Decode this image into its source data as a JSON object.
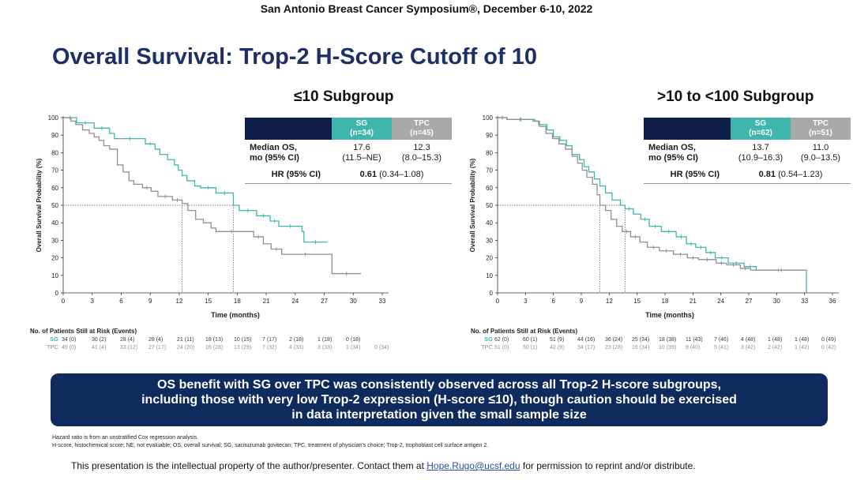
{
  "header": {
    "conference": "San Antonio Breast Cancer Symposium®, December 6-10, 2022",
    "title": "Overall Survival: Trop-2 H-Score Cutoff of 10"
  },
  "colors": {
    "sg": "#3eb6ad",
    "tpc": "#8f8f8f",
    "navy": "#0f1f4a",
    "title": "#1c2f66"
  },
  "chart_data": [
    {
      "type": "line",
      "title": "≤10 Subgroup",
      "xlabel": "Time (months)",
      "ylabel": "Overall Survival Probability (%)",
      "xlim": [
        0,
        33
      ],
      "ylim": [
        0,
        100
      ],
      "xticks": [
        "0",
        "3",
        "6",
        "9",
        "12",
        "15",
        "18",
        "21",
        "24",
        "27",
        "30",
        "33"
      ],
      "yticks": [
        "0",
        "10",
        "20",
        "30",
        "40",
        "50",
        "60",
        "70",
        "80",
        "90",
        "100"
      ],
      "median_reference": {
        "y": 50,
        "sg_x": 17.6,
        "tpc_x": 12.3
      },
      "series": [
        {
          "name": "SG",
          "key": "sg",
          "points": [
            [
              0,
              100
            ],
            [
              1.4,
              97
            ],
            [
              3.2,
              94
            ],
            [
              4.8,
              91
            ],
            [
              5.3,
              88
            ],
            [
              8.5,
              85
            ],
            [
              9.5,
              82
            ],
            [
              10,
              79
            ],
            [
              10.8,
              76
            ],
            [
              11.5,
              73
            ],
            [
              11.9,
              70
            ],
            [
              12.3,
              67
            ],
            [
              12.8,
              64
            ],
            [
              13.6,
              61
            ],
            [
              14.2,
              60
            ],
            [
              15.8,
              57
            ],
            [
              17.6,
              50
            ],
            [
              18.2,
              47
            ],
            [
              20,
              44
            ],
            [
              21.4,
              41
            ],
            [
              22.3,
              38
            ],
            [
              24.7,
              35
            ],
            [
              24.9,
              29
            ],
            [
              27.3,
              29
            ]
          ]
        },
        {
          "name": "TPC",
          "key": "tpc",
          "points": [
            [
              0,
              100
            ],
            [
              0.8,
              98
            ],
            [
              1.3,
              96
            ],
            [
              2,
              93
            ],
            [
              2.7,
              91
            ],
            [
              3.2,
              89
            ],
            [
              3.7,
              87
            ],
            [
              4.2,
              84
            ],
            [
              4.8,
              82
            ],
            [
              5.6,
              73
            ],
            [
              6.2,
              69
            ],
            [
              6.8,
              64
            ],
            [
              7.3,
              62
            ],
            [
              8.2,
              60
            ],
            [
              9.1,
              58
            ],
            [
              9.8,
              55
            ],
            [
              11.3,
              53
            ],
            [
              12.3,
              51
            ],
            [
              12.9,
              47
            ],
            [
              13.7,
              42
            ],
            [
              14.5,
              40
            ],
            [
              15.3,
              37
            ],
            [
              15.8,
              35
            ],
            [
              19,
              35
            ],
            [
              19.7,
              32
            ],
            [
              20.7,
              28
            ],
            [
              21.5,
              25
            ],
            [
              22.6,
              22
            ],
            [
              27.5,
              22
            ],
            [
              27.8,
              11
            ],
            [
              30.8,
              11
            ]
          ]
        }
      ]
    },
    {
      "type": "line",
      "title": ">10 to <100 Subgroup",
      "xlabel": "Time (months)",
      "ylabel": "Overall Survival Probability (%)",
      "xlim": [
        0,
        36
      ],
      "ylim": [
        0,
        100
      ],
      "xticks": [
        "0",
        "3",
        "6",
        "9",
        "12",
        "15",
        "18",
        "21",
        "24",
        "27",
        "30",
        "33",
        "36"
      ],
      "yticks": [
        "0",
        "10",
        "20",
        "30",
        "40",
        "50",
        "60",
        "70",
        "80",
        "90",
        "100"
      ],
      "median_reference": {
        "y": 50,
        "sg_x": 13.7,
        "tpc_x": 11.0
      },
      "series": [
        {
          "name": "SG",
          "key": "sg",
          "points": [
            [
              0,
              100
            ],
            [
              1,
              99
            ],
            [
              4,
              98
            ],
            [
              4.4,
              96
            ],
            [
              5.3,
              93
            ],
            [
              6,
              89
            ],
            [
              6.7,
              87
            ],
            [
              7.4,
              84
            ],
            [
              8,
              79
            ],
            [
              8.8,
              76
            ],
            [
              9.3,
              72
            ],
            [
              9.8,
              69
            ],
            [
              10.4,
              65
            ],
            [
              11,
              61
            ],
            [
              11.6,
              57
            ],
            [
              12.3,
              53
            ],
            [
              13.2,
              50
            ],
            [
              13.7,
              48
            ],
            [
              14.6,
              45
            ],
            [
              15.4,
              42
            ],
            [
              16.3,
              38
            ],
            [
              17.6,
              35
            ],
            [
              19.2,
              32
            ],
            [
              20.3,
              28
            ],
            [
              21.3,
              26
            ],
            [
              22.4,
              23
            ],
            [
              23.4,
              20
            ],
            [
              24.8,
              17
            ],
            [
              26.5,
              15
            ],
            [
              27.8,
              13
            ],
            [
              33.2,
              13
            ],
            [
              33.2,
              0
            ]
          ]
        },
        {
          "name": "TPC",
          "key": "tpc",
          "points": [
            [
              0,
              100
            ],
            [
              1,
              99
            ],
            [
              3.8,
              98
            ],
            [
              4.5,
              95
            ],
            [
              5.2,
              91
            ],
            [
              5.9,
              88
            ],
            [
              6.6,
              85
            ],
            [
              7.3,
              82
            ],
            [
              8,
              78
            ],
            [
              8.6,
              74
            ],
            [
              9.1,
              70
            ],
            [
              9.6,
              66
            ],
            [
              10.2,
              62
            ],
            [
              10.7,
              56
            ],
            [
              11,
              50
            ],
            [
              11.6,
              47
            ],
            [
              12.2,
              42
            ],
            [
              12.8,
              38
            ],
            [
              13.4,
              35
            ],
            [
              14.3,
              32
            ],
            [
              15.3,
              29
            ],
            [
              16.1,
              26
            ],
            [
              17.4,
              24
            ],
            [
              18.9,
              22
            ],
            [
              20.4,
              20
            ],
            [
              21.6,
              19
            ],
            [
              23.5,
              17
            ],
            [
              24.6,
              16
            ],
            [
              26.1,
              14
            ],
            [
              27.2,
              13
            ],
            [
              33.2,
              13
            ]
          ]
        }
      ]
    }
  ],
  "left_panel": {
    "subtitle": "≤10 Subgroup",
    "axis_ylabel": "Overall Survival Probability (%)",
    "axis_xlabel": "Time (months)",
    "table": {
      "sg_header": "SG",
      "sg_n": "(n=34)",
      "tpc_header": "TPC",
      "tpc_n": "(n=45)",
      "median_label_1": "Median OS,",
      "median_label_2": "mo (95% CI)",
      "sg_median": "17.6",
      "sg_ci": "(11.5–NE)",
      "tpc_median": "12.3",
      "tpc_ci": "(8.0–15.3)",
      "hr_label": "HR (95% CI)",
      "hr_value": "0.61",
      "hr_ci": "(0.34–1.08)"
    },
    "risk": {
      "title": "No. of Patients Still at Risk (Events)",
      "sg_label": "SG",
      "tpc_label": "TPC",
      "sg_values": [
        "34 (0)",
        "30 (2)",
        "28 (4)",
        "28 (4)",
        "21 (11)",
        "18 (13)",
        "10 (15)",
        "7 (17)",
        "2 (18)",
        "1 (18)",
        "0 (18)"
      ],
      "tpc_values": [
        "45 (0)",
        "41 (4)",
        "33 (12)",
        "27 (17)",
        "24 (20)",
        "16 (28)",
        "13 (29)",
        "7 (32)",
        "4 (33)",
        "3 (33)",
        "1 (34)",
        "0 (34)"
      ]
    }
  },
  "right_panel": {
    "subtitle": ">10 to <100 Subgroup",
    "axis_ylabel": "Overall Survival Probability (%)",
    "axis_xlabel": "Time (months)",
    "table": {
      "sg_header": "SG",
      "sg_n": "(n=62)",
      "tpc_header": "TPC",
      "tpc_n": "(n=51)",
      "median_label_1": "Median OS,",
      "median_label_2": "mo (95% CI)",
      "sg_median": "13.7",
      "sg_ci": "(10.9–16.3)",
      "tpc_median": "11.0",
      "tpc_ci": "(9.0–13.5)",
      "hr_label": "HR (95% CI)",
      "hr_value": "0.81",
      "hr_ci": "(0.54–1.23)"
    },
    "risk": {
      "title": "No. of Patients Still at Risk (Events)",
      "sg_label": "SG",
      "tpc_label": "TPC",
      "sg_values": [
        "62 (0)",
        "60 (1)",
        "51 (9)",
        "44 (16)",
        "36 (24)",
        "25 (34)",
        "18 (38)",
        "11 (43)",
        "7 (46)",
        "4 (48)",
        "1 (48)",
        "1 (48)",
        "0 (49)"
      ],
      "tpc_values": [
        "51 (0)",
        "50 (1)",
        "42 (9)",
        "34 (17)",
        "23 (28)",
        "16 (34)",
        "10 (39)",
        "9 (40)",
        "5 (41)",
        "3 (42)",
        "2 (42)",
        "1 (42)",
        "0 (42)"
      ]
    }
  },
  "callout": {
    "line1": "OS benefit with SG over TPC was consistently observed across all Trop-2 H-score subgroups,",
    "line2": "including those with very low Trop-2 expression (H-score ≤10), though caution should be exercised",
    "line3": "in data interpretation given the small sample size"
  },
  "footnotes": {
    "line1": "Hazard ratio is from an unstratified Cox regression analysis.",
    "line2": "H-score, histochemical score; NE, not evaluable; OS, overall survival; SG, sacituzumab govitecan; TPC, treatment of physician’s choice; Trop-2, trophoblast cell surface antigen 2."
  },
  "ip_notice": {
    "prefix": "This presentation is the intellectual property of the author/presenter. Contact them at",
    "email": "Hope.Rugo@ucsf.edu",
    "suffix": "for permission to reprint and/or distribute."
  }
}
